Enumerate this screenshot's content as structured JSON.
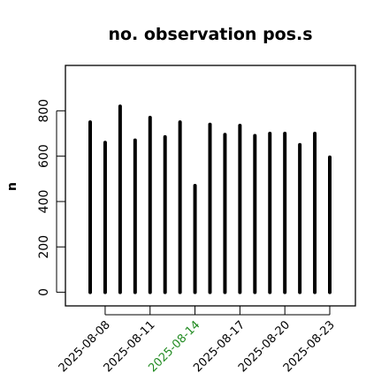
{
  "chart_data": {
    "type": "bar",
    "title": "no. observation pos.s",
    "ylabel": "n",
    "xlabel": "",
    "ylim": [
      -60,
      1000
    ],
    "yticks": [
      0,
      200,
      400,
      600,
      800
    ],
    "xtick_labels": [
      "2025-08-08",
      "2025-08-11",
      "2025-08-14",
      "2025-08-17",
      "2025-08-20",
      "2025-08-23"
    ],
    "highlight_tick": "2025-08-14",
    "dates": [
      "2025-08-07",
      "2025-08-08",
      "2025-08-09",
      "2025-08-10",
      "2025-08-11",
      "2025-08-12",
      "2025-08-13",
      "2025-08-14",
      "2025-08-15",
      "2025-08-16",
      "2025-08-17",
      "2025-08-18",
      "2025-08-19",
      "2025-08-20",
      "2025-08-21",
      "2025-08-22",
      "2025-08-23"
    ],
    "values": [
      750,
      660,
      820,
      670,
      770,
      685,
      750,
      470,
      740,
      695,
      735,
      690,
      700,
      700,
      650,
      700,
      595
    ],
    "grid": false,
    "legend": "none",
    "colors": {
      "bar": "#000000",
      "axis": "#000000",
      "highlight": "#228B22"
    }
  }
}
